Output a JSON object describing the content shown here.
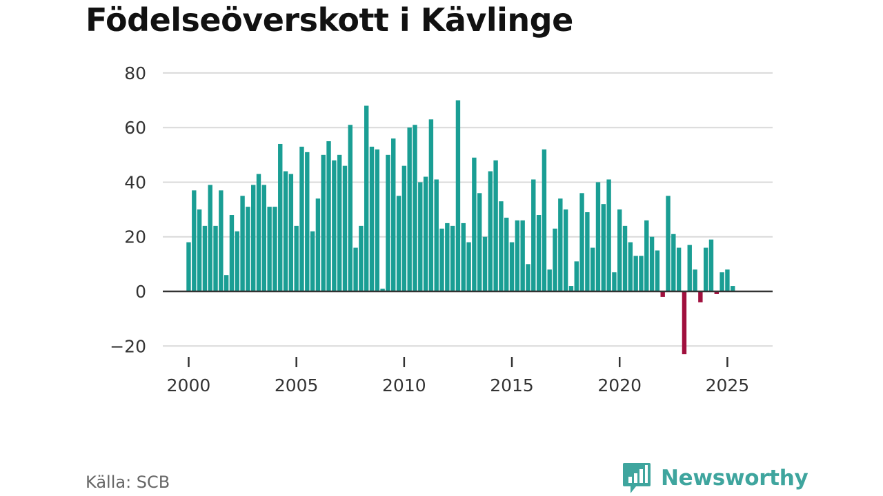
{
  "title": "Födelseöverskott i Kävlinge",
  "source": "Källa: SCB",
  "brand": {
    "name": "Newsworthy",
    "logo_icon": "bar-chart-speech-bubble-icon",
    "color": "#3fa59e"
  },
  "colors": {
    "positive": "#1a9e94",
    "negative": "#a0103e",
    "grid": "#d9d9d9",
    "zero_line": "#333333"
  },
  "chart_data": {
    "type": "bar",
    "title": "Födelseöverskott i Kävlinge",
    "xlabel": "",
    "ylabel": "",
    "frequency": "quarterly",
    "x_start": 2000.0,
    "x_step": 0.25,
    "xlim": [
      1998.8,
      2027.1
    ],
    "ylim": [
      -27,
      82
    ],
    "yticks": [
      -20,
      0,
      20,
      40,
      60,
      80
    ],
    "ytick_labels": [
      "−20",
      "0",
      "20",
      "40",
      "60",
      "80"
    ],
    "xticks": [
      2000,
      2005,
      2010,
      2015,
      2020,
      2025
    ],
    "xtick_labels": [
      "2000",
      "2005",
      "2010",
      "2015",
      "2020",
      "2025"
    ],
    "grid": true,
    "values": [
      18,
      37,
      30,
      24,
      39,
      24,
      37,
      6,
      28,
      22,
      35,
      31,
      39,
      43,
      39,
      31,
      31,
      54,
      44,
      43,
      24,
      53,
      51,
      22,
      34,
      50,
      55,
      48,
      50,
      46,
      61,
      16,
      24,
      68,
      53,
      52,
      1,
      50,
      56,
      35,
      46,
      60,
      61,
      40,
      42,
      63,
      41,
      23,
      25,
      24,
      70,
      25,
      18,
      49,
      36,
      20,
      44,
      48,
      33,
      27,
      18,
      26,
      26,
      10,
      41,
      28,
      52,
      8,
      23,
      34,
      30,
      2,
      11,
      36,
      29,
      16,
      40,
      32,
      41,
      7,
      30,
      24,
      18,
      13,
      13,
      26,
      20,
      15,
      -2,
      35,
      21,
      16,
      -23,
      17,
      8,
      -4,
      16,
      19,
      -1,
      7,
      8,
      2
    ]
  }
}
